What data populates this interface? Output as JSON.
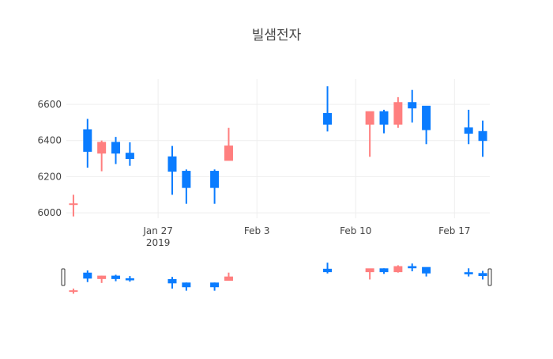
{
  "chart_data": {
    "type": "candlestick",
    "title": "빌샘전자",
    "x": [
      "2019-01-21",
      "2019-01-22",
      "2019-01-23",
      "2019-01-24",
      "2019-01-25",
      "2019-01-28",
      "2019-01-29",
      "2019-01-31",
      "2019-02-01",
      "2019-02-08",
      "2019-02-11",
      "2019-02-12",
      "2019-02-13",
      "2019-02-14",
      "2019-02-15",
      "2019-02-18",
      "2019-02-19"
    ],
    "open": [
      6050,
      6460,
      6330,
      6390,
      6330,
      6310,
      6230,
      6230,
      6290,
      6550,
      6490,
      6560,
      6490,
      6610,
      6590,
      6470,
      6450
    ],
    "high": [
      6100,
      6520,
      6400,
      6420,
      6390,
      6370,
      6240,
      6240,
      6470,
      6700,
      6560,
      6570,
      6640,
      6680,
      6590,
      6570,
      6510
    ],
    "low": [
      5980,
      6250,
      6230,
      6270,
      6260,
      6100,
      6050,
      6050,
      6290,
      6450,
      6310,
      6440,
      6470,
      6500,
      6380,
      6380,
      6310
    ],
    "close": [
      6050,
      6340,
      6390,
      6330,
      6300,
      6230,
      6140,
      6140,
      6370,
      6490,
      6560,
      6490,
      6610,
      6580,
      6460,
      6440,
      6400
    ],
    "increasing_color": "#ff7f7f",
    "decreasing_color": "#0a7cff",
    "xlim": [
      "2019-01-20 12:00",
      "2019-02-19 12:00"
    ],
    "xticks": [
      {
        "value": "2019-01-27",
        "label": "Jan 27\n2019"
      },
      {
        "value": "2019-02-03",
        "label": "Feb 3"
      },
      {
        "value": "2019-02-10",
        "label": "Feb 10"
      },
      {
        "value": "2019-02-17",
        "label": "Feb 17"
      }
    ],
    "ylim": [
      5970,
      6740
    ],
    "yticks": [
      6000,
      6200,
      6400,
      6600
    ],
    "grid": true,
    "rangeslider": true
  }
}
